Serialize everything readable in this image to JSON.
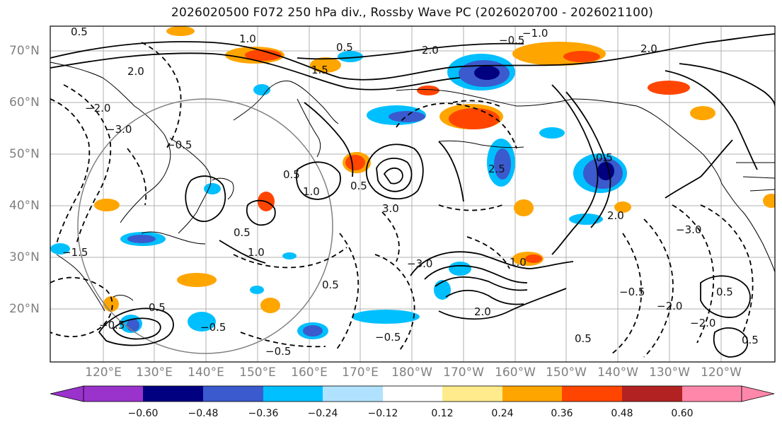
{
  "title": "2026020500 F072 250 hPa div., Rossby Wave PC (2026020700 - 2026021100)",
  "lat_labels": [
    "70°N",
    "60°N",
    "50°N",
    "40°N",
    "30°N",
    "20°N"
  ],
  "lon_labels": [
    "120°E",
    "130°E",
    "140°E",
    "150°E",
    "160°E",
    "170°E",
    "180°W",
    "170°W",
    "160°W",
    "150°W",
    "140°W",
    "130°W",
    "120°W"
  ],
  "colorbar": {
    "ticks": [
      "−0.60",
      "−0.48",
      "−0.36",
      "−0.24",
      "−0.12",
      "0.12",
      "0.24",
      "0.36",
      "0.48",
      "0.60"
    ],
    "colors": [
      "#9933cc",
      "#000080",
      "#3a5acd",
      "#00bfff",
      "#b0e2ff",
      "#ffffff",
      "#ffeb8b",
      "#ffa500",
      "#ff4500",
      "#b22222",
      "#ff88aa"
    ]
  },
  "contour_labels": [
    "0.5",
    "−0.5",
    "1.0",
    "−1.0",
    "1.5",
    "−1.5",
    "2.0",
    "−2.0",
    "2.5",
    "−3.0",
    "3.0"
  ],
  "colors": {
    "grid": "#b0b0b0",
    "contour": "#000000",
    "coast": "#000000",
    "rossby_circle": "#808080"
  }
}
